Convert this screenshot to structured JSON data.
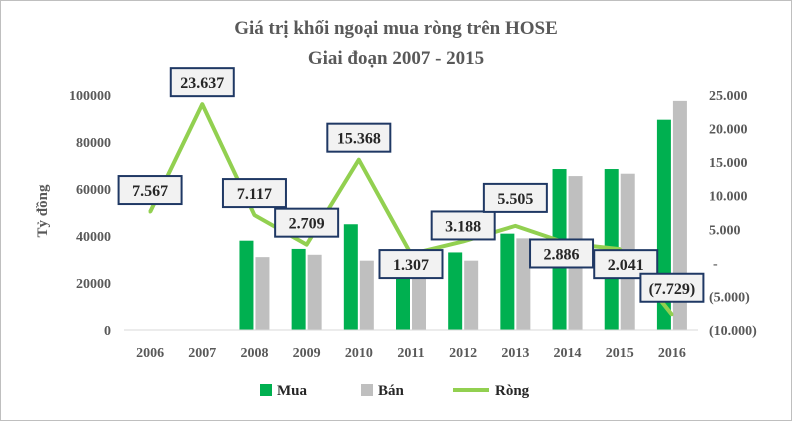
{
  "chart_data": {
    "type": "bar",
    "title_lines": [
      "Giá trị khối ngoại mua ròng trên HOSE",
      "Giai đoạn 2007 - 2015"
    ],
    "ylabel": "Tỷ đồng",
    "categories": [
      "2006",
      "2007",
      "2008",
      "2009",
      "2010",
      "2011",
      "2012",
      "2013",
      "2014",
      "2015",
      "2016"
    ],
    "left_ylim": [
      0,
      100000
    ],
    "left_ticks": [
      "0",
      "20000",
      "40000",
      "60000",
      "80000",
      "100000"
    ],
    "right_ylim": [
      -10000,
      25000
    ],
    "right_ticks": [
      "(10.000)",
      "(5.000)",
      "-",
      "5.000",
      "10.000",
      "15.000",
      "20.000",
      "25.000"
    ],
    "grid": false,
    "legend_position": "bottom",
    "series": [
      {
        "name": "Mua",
        "kind": "bar",
        "axis": "left",
        "color": "#00b050",
        "values": [
          null,
          null,
          38000,
          34500,
          45000,
          29500,
          33000,
          41000,
          68500,
          68500,
          89500
        ]
      },
      {
        "name": "Bán",
        "kind": "bar",
        "axis": "left",
        "color": "#bfbfbf",
        "values": [
          null,
          null,
          31000,
          32000,
          29500,
          29000,
          29500,
          39000,
          65500,
          66500,
          97500
        ]
      },
      {
        "name": "Ròng",
        "kind": "line",
        "axis": "right",
        "color": "#92d050",
        "values": [
          7567,
          23637,
          7117,
          2709,
          15368,
          1307,
          3188,
          5505,
          2886,
          2041,
          -7729
        ]
      }
    ],
    "net_labels": [
      "7.567",
      "23.637",
      "7.117",
      "2.709",
      "15.368",
      "1.307",
      "3.188",
      "5.505",
      "2.886",
      "2.041",
      "(7.729)"
    ]
  }
}
